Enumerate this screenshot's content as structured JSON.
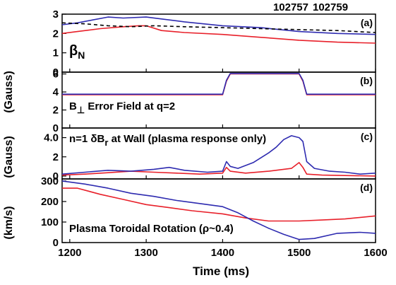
{
  "legend": {
    "shot_a": "102757",
    "shot_b": "102759",
    "color_a": "#e8202a",
    "color_b": "#2e2bb0"
  },
  "xaxis": {
    "label": "Time (ms)",
    "min": 1190,
    "max": 1600,
    "ticks": [
      "1200",
      "1300",
      "1400",
      "1500",
      "1600"
    ]
  },
  "ylabels": {
    "gauss_top": "(Gauss)",
    "gauss_bottom": "(Gauss)",
    "kms": "(km/s)"
  },
  "chart_data": [
    {
      "type": "line",
      "panel": "(a)",
      "label_main": "β",
      "label_sub": "N",
      "ylim": [
        0,
        3
      ],
      "yticks": [
        "0",
        "1",
        "2",
        "3"
      ],
      "series": [
        {
          "name": "102757",
          "color": "#e8202a",
          "x": [
            1190,
            1210,
            1240,
            1270,
            1290,
            1300,
            1320,
            1350,
            1400,
            1450,
            1500,
            1550,
            1600
          ],
          "y": [
            2.0,
            2.1,
            2.25,
            2.35,
            2.4,
            2.4,
            2.15,
            2.05,
            1.95,
            1.8,
            1.65,
            1.55,
            1.5
          ]
        },
        {
          "name": "102759",
          "color": "#2e2bb0",
          "x": [
            1190,
            1210,
            1230,
            1250,
            1270,
            1300,
            1320,
            1350,
            1400,
            1450,
            1500,
            1550,
            1600
          ],
          "y": [
            2.45,
            2.55,
            2.7,
            2.85,
            2.8,
            2.85,
            2.75,
            2.6,
            2.4,
            2.3,
            2.1,
            2.0,
            1.95
          ]
        },
        {
          "name": "",
          "color": "#000000",
          "dashed": true,
          "x": [
            1190,
            1220,
            1250,
            1280,
            1310,
            1350,
            1400,
            1450,
            1500,
            1550,
            1600
          ],
          "y": [
            2.55,
            2.5,
            2.4,
            2.35,
            2.4,
            2.35,
            2.3,
            2.25,
            2.2,
            2.15,
            2.05
          ]
        }
      ]
    },
    {
      "type": "line",
      "panel": "(b)",
      "label_main": "B",
      "label_sub": "⊥",
      "label_rest": " Error Field at q=2",
      "ylim": [
        0,
        6.2
      ],
      "yticks": [
        "0",
        "2",
        "4",
        "6"
      ],
      "series": [
        {
          "name": "102757",
          "color": "#e8202a",
          "x": [
            1190,
            1400,
            1405,
            1410,
            1500,
            1505,
            1510,
            1600
          ],
          "y": [
            3.7,
            3.7,
            5.2,
            6.0,
            6.0,
            5.2,
            3.7,
            3.7
          ]
        },
        {
          "name": "102759",
          "color": "#2e2bb0",
          "x": [
            1190,
            1400,
            1405,
            1410,
            1500,
            1505,
            1510,
            1600
          ],
          "y": [
            3.75,
            3.75,
            5.3,
            6.05,
            6.05,
            5.3,
            3.75,
            3.75
          ]
        }
      ]
    },
    {
      "type": "line",
      "panel": "(c)",
      "label_main": "n=1 δB",
      "label_sub": "r",
      "label_rest": " at Wall (plasma response only)",
      "ylim": [
        -0.3,
        5.0
      ],
      "yticks": [
        "0",
        "2",
        "4.0"
      ],
      "series": [
        {
          "name": "102757",
          "color": "#e8202a",
          "x": [
            1190,
            1220,
            1250,
            1280,
            1310,
            1340,
            1370,
            1400,
            1405,
            1410,
            1430,
            1460,
            1490,
            1500,
            1505,
            1510,
            1530,
            1560,
            1600
          ],
          "y": [
            0.1,
            0.2,
            0.35,
            0.5,
            0.4,
            0.3,
            0.2,
            0.3,
            0.9,
            0.5,
            0.3,
            0.5,
            0.8,
            1.4,
            0.9,
            0.2,
            0.1,
            0.05,
            0.0
          ]
        },
        {
          "name": "102759",
          "color": "#2e2bb0",
          "x": [
            1190,
            1220,
            1250,
            1280,
            1310,
            1330,
            1350,
            1380,
            1400,
            1405,
            1410,
            1420,
            1440,
            1460,
            1470,
            1480,
            1490,
            1500,
            1505,
            1510,
            1520,
            1540,
            1560,
            1580,
            1600
          ],
          "y": [
            0.2,
            0.4,
            0.6,
            0.5,
            0.7,
            0.9,
            0.6,
            0.4,
            0.5,
            1.5,
            1.0,
            0.8,
            1.4,
            2.4,
            3.0,
            3.8,
            4.2,
            4.0,
            3.6,
            1.5,
            0.8,
            0.5,
            0.4,
            0.2,
            0.3
          ]
        }
      ]
    },
    {
      "type": "line",
      "panel": "(d)",
      "label_main": "Plasma Toroidal Rotation (ρ~0.4)",
      "ylim": [
        0,
        310
      ],
      "yticks": [
        "0",
        "100",
        "200",
        "300"
      ],
      "series": [
        {
          "name": "102757",
          "color": "#e8202a",
          "x": [
            1190,
            1210,
            1240,
            1270,
            1300,
            1330,
            1360,
            1400,
            1430,
            1460,
            1500,
            1530,
            1560,
            1600
          ],
          "y": [
            265,
            265,
            235,
            210,
            185,
            170,
            155,
            140,
            120,
            105,
            105,
            110,
            115,
            130
          ]
        },
        {
          "name": "102759",
          "color": "#2e2bb0",
          "x": [
            1190,
            1220,
            1250,
            1280,
            1310,
            1340,
            1370,
            1400,
            1420,
            1440,
            1460,
            1480,
            1500,
            1520,
            1550,
            1580,
            1600
          ],
          "y": [
            300,
            285,
            265,
            240,
            225,
            205,
            190,
            175,
            145,
            105,
            70,
            40,
            15,
            20,
            45,
            50,
            45
          ]
        }
      ]
    }
  ]
}
